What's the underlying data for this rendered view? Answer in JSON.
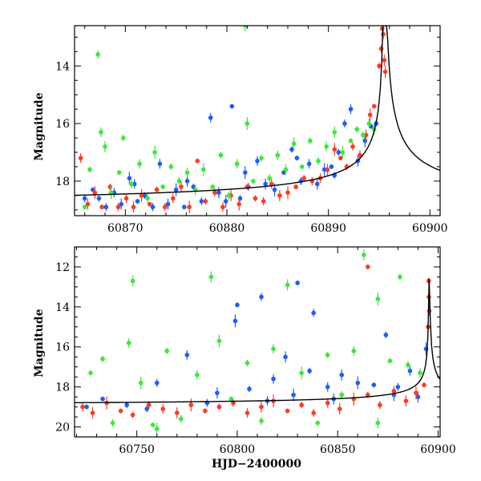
{
  "chart_data": [
    {
      "type": "scatter",
      "title": "",
      "xlabel": "",
      "ylabel": "Magnitude",
      "xlim": [
        60865,
        60901
      ],
      "ylim": [
        19.2,
        12.6
      ],
      "y_inverted": true,
      "xticks": [
        60870,
        60880,
        60890,
        60900
      ],
      "yticks": [
        14,
        16,
        18
      ],
      "series": [
        {
          "color": "#1e5cff",
          "points": [
            [
              60866.8,
              18.3
            ],
            [
              60867.4,
              18.6
            ],
            [
              60868.1,
              18.9
            ],
            [
              60868.9,
              18.4
            ],
            [
              60869.6,
              18.8
            ],
            [
              60870.4,
              17.9
            ],
            [
              60871.2,
              18.7
            ],
            [
              60871.9,
              18.5
            ],
            [
              60872.7,
              18.9
            ],
            [
              60873.4,
              17.4
            ],
            [
              60874.2,
              18.8
            ],
            [
              60875.0,
              18.3
            ],
            [
              60875.8,
              18.9
            ],
            [
              60876.7,
              18.2
            ],
            [
              60877.5,
              18.7
            ],
            [
              60878.4,
              15.8
            ],
            [
              60879.2,
              18.4
            ],
            [
              60879.9,
              18.7
            ],
            [
              60880.5,
              15.4
            ],
            [
              60881.3,
              18.6
            ],
            [
              60882.1,
              18.2
            ],
            [
              60883.0,
              17.3
            ],
            [
              60883.8,
              18.1
            ],
            [
              60884.7,
              18.3
            ],
            [
              60885.6,
              17.7
            ],
            [
              60886.4,
              16.9
            ],
            [
              60887.3,
              18.0
            ],
            [
              60888.1,
              17.4
            ],
            [
              60888.9,
              18.1
            ],
            [
              60889.6,
              17.6
            ],
            [
              60890.3,
              17.5
            ],
            [
              60891.0,
              17.0
            ],
            [
              60891.6,
              16.0
            ],
            [
              60892.2,
              15.5
            ],
            [
              60892.9,
              17.3
            ],
            [
              60893.6,
              16.6
            ],
            [
              60894.2,
              16.1
            ],
            [
              60894.7,
              16.0
            ],
            [
              60866.0,
              18.6
            ],
            [
              60870.9,
              18.1
            ],
            [
              60876.1,
              18.0
            ],
            [
              60881.8,
              17.7
            ],
            [
              60886.9,
              17.2
            ],
            [
              60890.6,
              17.8
            ]
          ]
        },
        {
          "color": "#ff3a24",
          "points": [
            [
              60865.6,
              17.2
            ],
            [
              60866.3,
              18.8
            ],
            [
              60867.0,
              18.4
            ],
            [
              60867.7,
              18.9
            ],
            [
              60868.5,
              18.2
            ],
            [
              60869.3,
              18.9
            ],
            [
              60870.1,
              18.6
            ],
            [
              60870.8,
              18.9
            ],
            [
              60871.6,
              18.5
            ],
            [
              60872.4,
              18.8
            ],
            [
              60873.1,
              18.3
            ],
            [
              60873.9,
              18.9
            ],
            [
              60874.7,
              18.6
            ],
            [
              60875.5,
              18.2
            ],
            [
              60876.3,
              18.9
            ],
            [
              60877.1,
              17.3
            ],
            [
              60877.9,
              18.7
            ],
            [
              60878.8,
              18.4
            ],
            [
              60879.6,
              18.9
            ],
            [
              60880.4,
              18.5
            ],
            [
              60881.2,
              18.8
            ],
            [
              60882.0,
              18.2
            ],
            [
              60882.8,
              18.6
            ],
            [
              60883.6,
              18.7
            ],
            [
              60884.4,
              18.1
            ],
            [
              60885.2,
              18.5
            ],
            [
              60886.0,
              18.4
            ],
            [
              60886.8,
              18.2
            ],
            [
              60887.6,
              17.9
            ],
            [
              60888.4,
              18.0
            ],
            [
              60889.2,
              17.9
            ],
            [
              60889.9,
              17.6
            ],
            [
              60890.6,
              16.9
            ],
            [
              60891.2,
              17.2
            ],
            [
              60891.8,
              17.5
            ],
            [
              60892.4,
              16.8
            ],
            [
              60893.1,
              17.1
            ],
            [
              60893.7,
              16.4
            ],
            [
              60894.1,
              15.7
            ],
            [
              60894.5,
              15.4
            ],
            [
              60895.0,
              14.0
            ],
            [
              60895.2,
              13.4
            ],
            [
              60895.4,
              12.9
            ],
            [
              60895.5,
              13.8
            ],
            [
              60895.6,
              14.2
            ],
            [
              60895.3,
              12.7
            ]
          ]
        },
        {
          "color": "#3be83b",
          "points": [
            [
              60866.0,
              18.9
            ],
            [
              60866.5,
              17.6
            ],
            [
              60867.3,
              13.6
            ],
            [
              60867.6,
              16.3
            ],
            [
              60868.0,
              16.8
            ],
            [
              60868.6,
              18.4
            ],
            [
              60869.4,
              17.7
            ],
            [
              60869.8,
              16.5
            ],
            [
              60870.6,
              18.1
            ],
            [
              60871.4,
              17.4
            ],
            [
              60872.2,
              18.6
            ],
            [
              60872.9,
              17.0
            ],
            [
              60873.7,
              18.2
            ],
            [
              60874.5,
              17.5
            ],
            [
              60875.3,
              18.0
            ],
            [
              60876.1,
              17.7
            ],
            [
              60876.9,
              18.3
            ],
            [
              60877.7,
              17.6
            ],
            [
              60878.6,
              18.2
            ],
            [
              60879.4,
              17.1
            ],
            [
              60880.2,
              18.5
            ],
            [
              60881.0,
              17.4
            ],
            [
              60881.8,
              12.6
            ],
            [
              60882.0,
              16.0
            ],
            [
              60882.6,
              18.0
            ],
            [
              60883.4,
              17.2
            ],
            [
              60884.2,
              17.9
            ],
            [
              60885.0,
              17.1
            ],
            [
              60885.8,
              17.6
            ],
            [
              60886.6,
              16.7
            ],
            [
              60887.4,
              17.5
            ],
            [
              60888.2,
              16.6
            ],
            [
              60889.0,
              17.3
            ],
            [
              60889.8,
              16.8
            ],
            [
              60890.6,
              16.3
            ],
            [
              60891.4,
              17.0
            ],
            [
              60892.2,
              16.6
            ],
            [
              60892.8,
              16.2
            ],
            [
              60893.4,
              16.4
            ],
            [
              60894.0,
              16.0
            ],
            [
              60894.5,
              16.2
            ]
          ]
        }
      ],
      "model_curve": {
        "peak_x": 60895.5,
        "peak_y": 12.6,
        "baseline": 19.0
      }
    },
    {
      "type": "scatter",
      "title": "",
      "xlabel": "HJD−2400000",
      "ylabel": "Magnitude",
      "xlim": [
        60719,
        60901
      ],
      "ylim": [
        20.5,
        11.0
      ],
      "y_inverted": true,
      "xticks": [
        60750,
        60800,
        60850,
        60900
      ],
      "yticks": [
        12,
        14,
        16,
        18,
        20
      ],
      "series": [
        {
          "color": "#1e5cff",
          "points": [
            [
              60733,
              18.6
            ],
            [
              60745,
              18.9
            ],
            [
              60760,
              17.8
            ],
            [
              60775,
              16.4
            ],
            [
              60790,
              18.3
            ],
            [
              60799,
              14.7
            ],
            [
              60800,
              13.9
            ],
            [
              60806,
              18.1
            ],
            [
              60812,
              13.5
            ],
            [
              60818,
              17.6
            ],
            [
              60824,
              16.5
            ],
            [
              60828,
              18.4
            ],
            [
              60830,
              12.8
            ],
            [
              60836,
              17.2
            ],
            [
              60838,
              14.3
            ],
            [
              60845,
              18.0
            ],
            [
              60852,
              17.4
            ],
            [
              60860,
              17.8
            ],
            [
              60868,
              17.9
            ],
            [
              60874,
              15.4
            ],
            [
              60880,
              18.0
            ],
            [
              60886,
              17.2
            ],
            [
              60890,
              18.5
            ],
            [
              60894,
              16.1
            ],
            [
              60725,
              19.0
            ],
            [
              60755,
              19.1
            ],
            [
              60785,
              18.8
            ],
            [
              60815,
              18.7
            ],
            [
              60848,
              18.6
            ],
            [
              60878,
              18.4
            ]
          ]
        },
        {
          "color": "#ff3a24",
          "points": [
            [
              60723,
              19.0
            ],
            [
              60728,
              19.3
            ],
            [
              60735,
              18.8
            ],
            [
              60742,
              19.2
            ],
            [
              60748,
              19.4
            ],
            [
              60756,
              18.9
            ],
            [
              60763,
              19.1
            ],
            [
              60770,
              19.3
            ],
            [
              60777,
              18.9
            ],
            [
              60784,
              19.2
            ],
            [
              60791,
              19.0
            ],
            [
              60798,
              18.8
            ],
            [
              60805,
              19.3
            ],
            [
              60812,
              19.0
            ],
            [
              60818,
              18.7
            ],
            [
              60825,
              19.2
            ],
            [
              60832,
              18.9
            ],
            [
              60838,
              19.3
            ],
            [
              60845,
              18.8
            ],
            [
              60851,
              19.1
            ],
            [
              60858,
              18.6
            ],
            [
              60865,
              12.0
            ],
            [
              60865,
              18.4
            ],
            [
              60871,
              18.9
            ],
            [
              60878,
              18.2
            ],
            [
              60884,
              18.7
            ],
            [
              60889,
              18.3
            ],
            [
              60893,
              17.9
            ],
            [
              60895.3,
              12.7
            ],
            [
              60895.4,
              13.5
            ],
            [
              60895.6,
              14.2
            ],
            [
              60895.0,
              15.0
            ]
          ]
        },
        {
          "color": "#3be83b",
          "points": [
            [
              60727,
              17.3
            ],
            [
              60733,
              16.6
            ],
            [
              60738,
              19.8
            ],
            [
              60746,
              15.8
            ],
            [
              60748,
              12.7
            ],
            [
              60752,
              17.8
            ],
            [
              60758,
              19.9
            ],
            [
              60765,
              16.2
            ],
            [
              60772,
              19.6
            ],
            [
              60780,
              17.4
            ],
            [
              60787,
              12.5
            ],
            [
              60791,
              15.7
            ],
            [
              60797,
              18.6
            ],
            [
              60805,
              16.8
            ],
            [
              60812,
              19.7
            ],
            [
              60818,
              16.1
            ],
            [
              60825,
              12.9
            ],
            [
              60832,
              17.3
            ],
            [
              60840,
              19.8
            ],
            [
              60845,
              16.4
            ],
            [
              60852,
              18.4
            ],
            [
              60858,
              16.2
            ],
            [
              60863,
              11.4
            ],
            [
              60870,
              13.6
            ],
            [
              60876,
              16.7
            ],
            [
              60881,
              12.5
            ],
            [
              60885,
              16.9
            ],
            [
              60891,
              17.3
            ],
            [
              60870,
              19.8
            ],
            [
              60760,
              20.1
            ]
          ]
        }
      ],
      "model_curve": {
        "peak_x": 60895.5,
        "peak_y": 12.6,
        "baseline": 19.0
      }
    }
  ]
}
